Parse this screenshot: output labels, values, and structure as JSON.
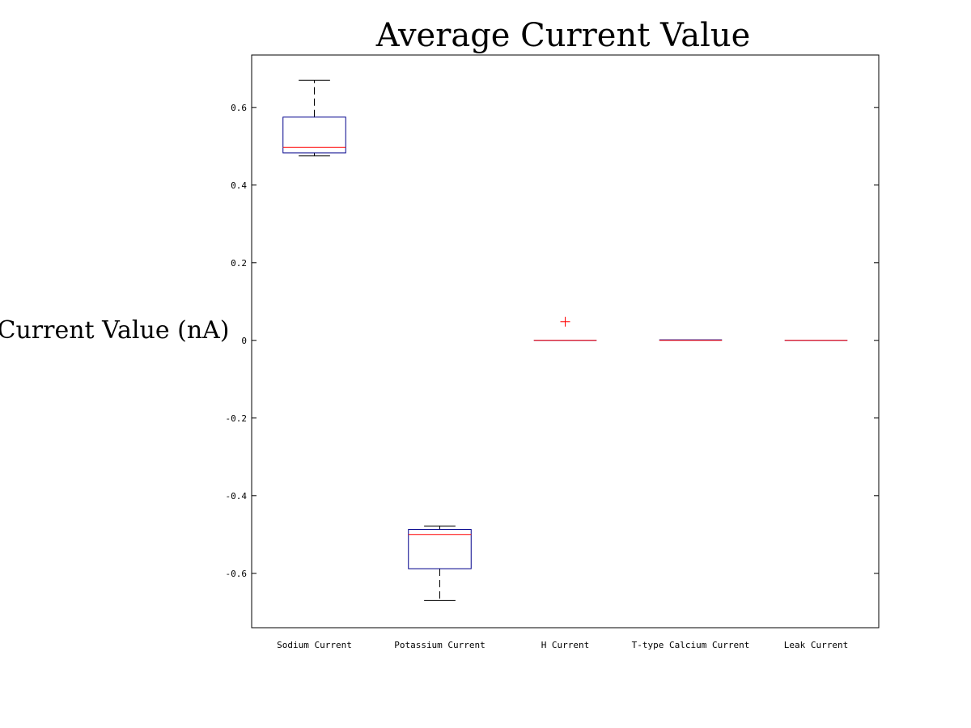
{
  "chart_data": {
    "type": "box",
    "title": "Average Current Value",
    "xlabel": "",
    "ylabel": "Current Value (nA)",
    "ylim": [
      -0.74,
      0.735
    ],
    "yticks": [
      -0.6,
      -0.4,
      -0.2,
      0,
      0.2,
      0.4,
      0.6
    ],
    "ytick_labels": [
      "-0.6",
      "-0.4",
      "-0.2",
      "0",
      "0.2",
      "0.4",
      "0.6"
    ],
    "grid": false,
    "categories": [
      "Sodium Current",
      "Potassium Current",
      "H Current",
      "T-type Calcium Current",
      "Leak Current"
    ],
    "boxes": [
      {
        "category": "Sodium Current",
        "whisker_low": 0.475,
        "q1": 0.483,
        "median": 0.497,
        "q3": 0.575,
        "whisker_high": 0.67,
        "outliers": []
      },
      {
        "category": "Potassium Current",
        "whisker_low": -0.67,
        "q1": -0.588,
        "median": -0.5,
        "q3": -0.487,
        "whisker_high": -0.478,
        "outliers": []
      },
      {
        "category": "H Current",
        "whisker_low": 0,
        "q1": 0,
        "median": 0,
        "q3": 0,
        "whisker_high": 0,
        "outliers": [
          0.048
        ]
      },
      {
        "category": "T-type Calcium Current",
        "whisker_low": 0,
        "q1": 0,
        "median": 0,
        "q3": 0.0015,
        "whisker_high": 0.0015,
        "outliers": []
      },
      {
        "category": "Leak Current",
        "whisker_low": 0,
        "q1": 0,
        "median": 0,
        "q3": 0,
        "whisker_high": 0,
        "outliers": []
      }
    ],
    "colors": {
      "box": "#00008b",
      "median": "#ff0000",
      "whisker": "#000000",
      "outlier": "#ff0000",
      "axes": "#000000"
    }
  }
}
